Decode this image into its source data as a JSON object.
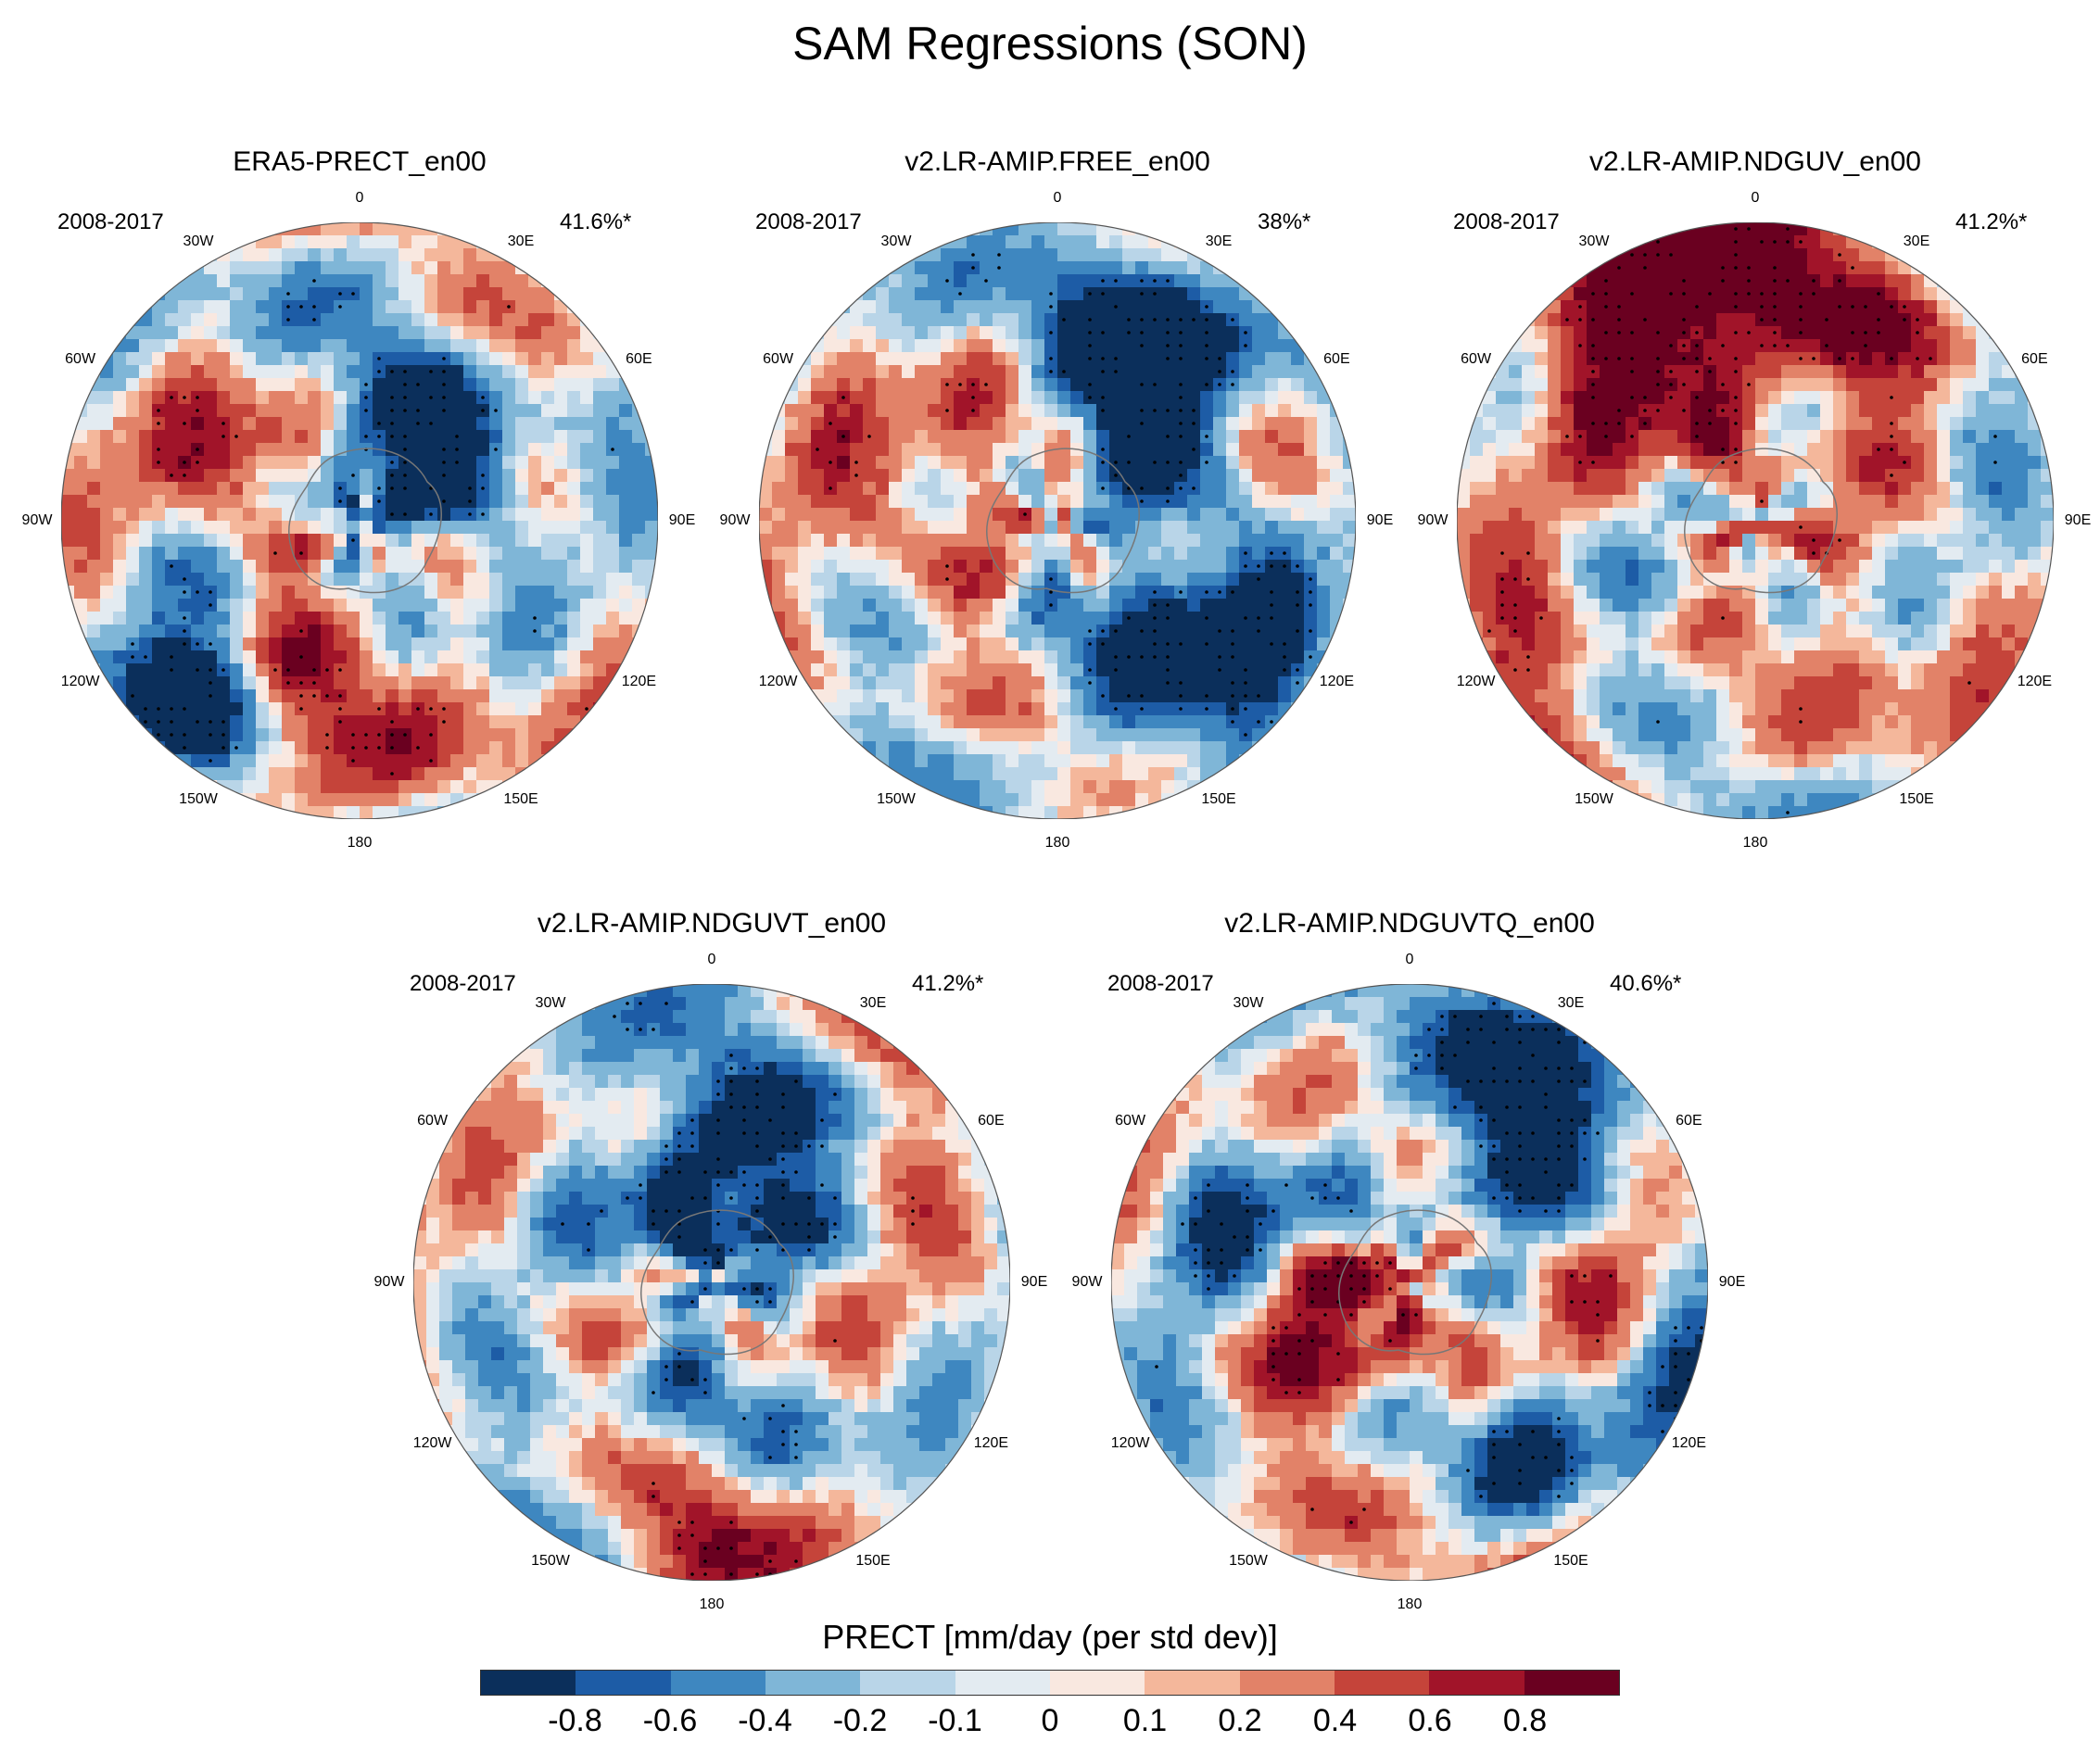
{
  "title": "SAM Regressions (SON)",
  "panels": [
    {
      "title": "ERA5-PRECT_en00",
      "period": "2008-2017",
      "pct": "41.6%*",
      "seed": 11
    },
    {
      "title": "v2.LR-AMIP.FREE_en00",
      "period": "2008-2017",
      "pct": "38%*",
      "seed": 23
    },
    {
      "title": "v2.LR-AMIP.NDGUV_en00",
      "period": "2008-2017",
      "pct": "41.2%*",
      "seed": 37
    },
    {
      "title": "v2.LR-AMIP.NDGUVT_en00",
      "period": "2008-2017",
      "pct": "41.2%*",
      "seed": 41
    },
    {
      "title": "v2.LR-AMIP.NDGUVTQ_en00",
      "period": "2008-2017",
      "pct": "40.6%*",
      "seed": 53
    }
  ],
  "longitude_labels": [
    "0",
    "30E",
    "60E",
    "90E",
    "120E",
    "150E",
    "180",
    "150W",
    "120W",
    "90W",
    "60W",
    "30W"
  ],
  "colorbar": {
    "title": "PRECT [mm/day (per std dev)]",
    "colors": [
      "#0b2f5b",
      "#1d5ca6",
      "#3e87c0",
      "#7fb6d7",
      "#b9d5e8",
      "#e3ebf1",
      "#f9e8e0",
      "#f4b79b",
      "#e28268",
      "#c5443a",
      "#a11429",
      "#6a0020"
    ],
    "levels": [
      -0.8,
      -0.6,
      -0.4,
      -0.2,
      -0.1,
      0,
      0.1,
      0.2,
      0.4,
      0.6,
      0.8
    ],
    "tick_labels": [
      "-0.8",
      "-0.6",
      "-0.4",
      "-0.2",
      "-0.1",
      "0",
      "0.1",
      "0.2",
      "0.4",
      "0.6",
      "0.8"
    ]
  }
}
